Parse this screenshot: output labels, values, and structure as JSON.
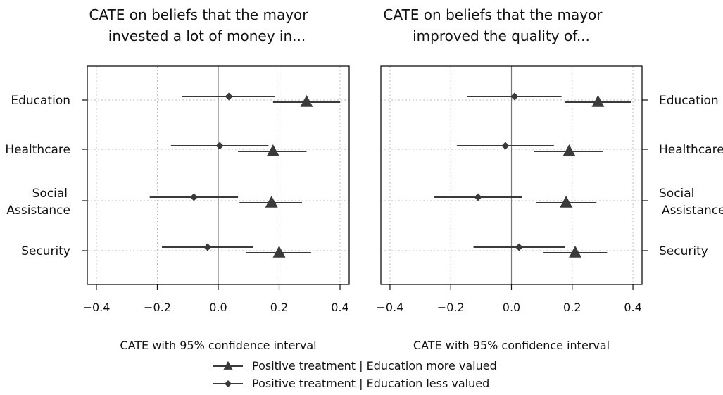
{
  "chart_data": [
    {
      "type": "scatter",
      "title": [
        "CATE on beliefs that the mayor",
        "invested a lot of money in..."
      ],
      "xlabel": "CATE with 95% confidence interval",
      "ylabel": "",
      "xlim": [
        -0.43,
        0.43
      ],
      "x_ticks": [
        "−0.4",
        "−0.2",
        "0.0",
        "0.2",
        "0.4"
      ],
      "x_tick_values": [
        -0.4,
        -0.2,
        0.0,
        0.2,
        0.4
      ],
      "reference_line": 0.0,
      "grid": "dotted",
      "categories": [
        {
          "lines": [
            "Education"
          ]
        },
        {
          "lines": [
            "Healthcare"
          ]
        },
        {
          "lines": [
            "Social",
            "Assistance"
          ]
        },
        {
          "lines": [
            "Security"
          ]
        }
      ],
      "category_label_side": "left",
      "series": [
        {
          "marker": "triangle",
          "estimates": [
            0.29,
            0.18,
            0.175,
            0.2
          ],
          "lower": [
            0.18,
            0.065,
            0.07,
            0.09
          ],
          "upper": [
            0.4,
            0.29,
            0.275,
            0.305
          ]
        },
        {
          "marker": "diamond",
          "estimates": [
            0.035,
            0.005,
            -0.08,
            -0.035
          ],
          "lower": [
            -0.12,
            -0.155,
            -0.225,
            -0.185
          ],
          "upper": [
            0.185,
            0.165,
            0.065,
            0.115
          ]
        }
      ]
    },
    {
      "type": "scatter",
      "title": [
        "CATE on beliefs that the mayor",
        "improved the quality of..."
      ],
      "xlabel": "CATE with 95% confidence interval",
      "ylabel": "",
      "xlim": [
        -0.43,
        0.43
      ],
      "x_ticks": [
        "−0.4",
        "−0.2",
        "0.0",
        "0.2",
        "0.4"
      ],
      "x_tick_values": [
        -0.4,
        -0.2,
        0.0,
        0.2,
        0.4
      ],
      "reference_line": 0.0,
      "grid": "dotted",
      "categories": [
        {
          "lines": [
            "Education"
          ]
        },
        {
          "lines": [
            "Healthcare"
          ]
        },
        {
          "lines": [
            "Social",
            "Assistance"
          ]
        },
        {
          "lines": [
            "Security"
          ]
        }
      ],
      "category_label_side": "right",
      "series": [
        {
          "marker": "triangle",
          "estimates": [
            0.285,
            0.19,
            0.18,
            0.21
          ],
          "lower": [
            0.175,
            0.075,
            0.08,
            0.105
          ],
          "upper": [
            0.395,
            0.3,
            0.28,
            0.315
          ]
        },
        {
          "marker": "diamond",
          "estimates": [
            0.01,
            -0.02,
            -0.11,
            0.025
          ],
          "lower": [
            -0.145,
            -0.18,
            -0.255,
            -0.125
          ],
          "upper": [
            0.165,
            0.14,
            0.035,
            0.175
          ]
        }
      ]
    }
  ],
  "legend": {
    "position": "bottom-center",
    "items": [
      {
        "marker": "triangle",
        "label": "Positive treatment | Education more valued"
      },
      {
        "marker": "diamond",
        "label": "Positive treatment | Education less valued"
      }
    ]
  },
  "colors": {
    "ink": "#3a3a3a",
    "frame": "#111111",
    "grid": "#bbbbbb",
    "zero": "#777777"
  }
}
